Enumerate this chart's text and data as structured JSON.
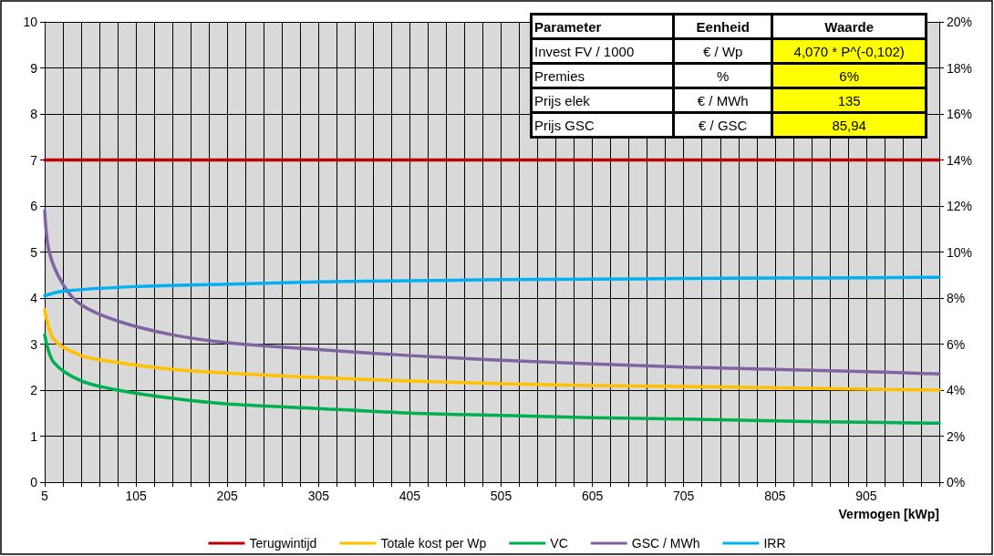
{
  "chart_data": {
    "type": "line",
    "xlabel": "Vermogen [kWp]",
    "xlim": [
      5,
      985
    ],
    "xticks": [
      5,
      {
        "value": 25,
        "label": null
      },
      {
        "value": 45,
        "label": null
      },
      {
        "value": 65,
        "label": null
      },
      {
        "value": 85,
        "label": null
      },
      105,
      {
        "value": 125,
        "label": null
      },
      {
        "value": 145,
        "label": null
      },
      {
        "value": 165,
        "label": null
      },
      {
        "value": 185,
        "label": null
      },
      205,
      {
        "value": 225,
        "label": null
      },
      {
        "value": 245,
        "label": null
      },
      {
        "value": 265,
        "label": null
      },
      {
        "value": 285,
        "label": null
      },
      305,
      {
        "value": 325,
        "label": null
      },
      {
        "value": 345,
        "label": null
      },
      {
        "value": 365,
        "label": null
      },
      {
        "value": 385,
        "label": null
      },
      405,
      {
        "value": 425,
        "label": null
      },
      {
        "value": 445,
        "label": null
      },
      {
        "value": 465,
        "label": null
      },
      {
        "value": 485,
        "label": null
      },
      505,
      {
        "value": 525,
        "label": null
      },
      {
        "value": 545,
        "label": null
      },
      {
        "value": 565,
        "label": null
      },
      {
        "value": 585,
        "label": null
      },
      605,
      {
        "value": 625,
        "label": null
      },
      {
        "value": 645,
        "label": null
      },
      {
        "value": 665,
        "label": null
      },
      {
        "value": 685,
        "label": null
      },
      705,
      {
        "value": 725,
        "label": null
      },
      {
        "value": 745,
        "label": null
      },
      {
        "value": 765,
        "label": null
      },
      {
        "value": 785,
        "label": null
      },
      805,
      {
        "value": 825,
        "label": null
      },
      {
        "value": 845,
        "label": null
      },
      {
        "value": 865,
        "label": null
      },
      {
        "value": 885,
        "label": null
      },
      905,
      {
        "value": 925,
        "label": null
      },
      {
        "value": 945,
        "label": null
      },
      {
        "value": 965,
        "label": null
      },
      {
        "value": 985,
        "label": null
      }
    ],
    "ylim": [
      0,
      10
    ],
    "yticks": [
      0,
      1,
      2,
      3,
      4,
      5,
      6,
      7,
      8,
      9,
      10
    ],
    "y2lim": [
      0,
      20
    ],
    "y2ticks": [
      {
        "value": 0,
        "label": "0%"
      },
      {
        "value": 2,
        "label": "2%"
      },
      {
        "value": 4,
        "label": "4%"
      },
      {
        "value": 6,
        "label": "6%"
      },
      {
        "value": 8,
        "label": "8%"
      },
      {
        "value": 10,
        "label": "10%"
      },
      {
        "value": 12,
        "label": "12%"
      },
      {
        "value": 14,
        "label": "14%"
      },
      {
        "value": 16,
        "label": "16%"
      },
      {
        "value": 18,
        "label": "18%"
      },
      {
        "value": 20,
        "label": "20%"
      }
    ],
    "grid": true,
    "legend": "bottom",
    "marker": "none",
    "line_style": "solid",
    "annotations": [
      "Parameter",
      "Eenheid",
      "Waarde",
      "Invest FV / 1000",
      "€ / Wp",
      "4,070 * P^(-0,102)",
      "Premies",
      "%",
      "6%",
      "Prijs elek",
      "€ / MWh",
      "135",
      "Prijs GSC",
      "€ / GSC",
      "85,94"
    ],
    "series": [
      {
        "name": "Terugwintijd",
        "color": "#c00000",
        "x": [
          5,
          985
        ],
        "values": [
          7,
          7
        ]
      },
      {
        "name": "Totale kost per Wp",
        "color": "#ffc000",
        "x": [
          5,
          15,
          45,
          85,
          145,
          205,
          305,
          405,
          505,
          605,
          705,
          805,
          905,
          985
        ],
        "values": [
          3.75,
          3.1,
          2.75,
          2.6,
          2.45,
          2.37,
          2.27,
          2.2,
          2.14,
          2.1,
          2.08,
          2.05,
          2.02,
          2.0
        ]
      },
      {
        "name": "VC",
        "color": "#00b050",
        "x": [
          5,
          15,
          45,
          85,
          145,
          205,
          305,
          405,
          505,
          605,
          705,
          805,
          905,
          985
        ],
        "values": [
          3.2,
          2.6,
          2.2,
          2.0,
          1.82,
          1.7,
          1.6,
          1.5,
          1.45,
          1.4,
          1.37,
          1.33,
          1.3,
          1.28
        ]
      },
      {
        "name": "GSC / MWh",
        "color": "#8064a2",
        "x": [
          5,
          10,
          25,
          45,
          85,
          145,
          205,
          305,
          405,
          505,
          605,
          705,
          805,
          905,
          985
        ],
        "values": [
          5.9,
          5.0,
          4.3,
          3.85,
          3.5,
          3.2,
          3.03,
          2.88,
          2.75,
          2.65,
          2.57,
          2.5,
          2.45,
          2.4,
          2.35
        ]
      },
      {
        "name": "IRR",
        "color": "#00b0f0",
        "axis": "y2",
        "x": [
          5,
          25,
          105,
          205,
          305,
          405,
          505,
          605,
          705,
          805,
          905,
          985
        ],
        "values": [
          8.1,
          8.3,
          8.5,
          8.6,
          8.7,
          8.75,
          8.8,
          8.82,
          8.85,
          8.87,
          8.88,
          8.9
        ]
      }
    ]
  }
}
